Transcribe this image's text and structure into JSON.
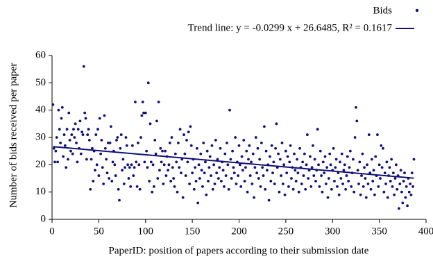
{
  "chart_data": {
    "type": "scatter",
    "x_label": "PaperID: position of papers according to their submission date",
    "y_label": "Number of bids received per paper",
    "xlim": [
      0,
      400
    ],
    "xticks": [
      0,
      50,
      100,
      150,
      200,
      250,
      300,
      350,
      400
    ],
    "ylim": [
      0,
      60
    ],
    "yticks": [
      0,
      10,
      20,
      30,
      40,
      50,
      60
    ],
    "grid": false,
    "legend": "top-right",
    "series": [
      {
        "name": "Bids",
        "type": "scatter",
        "color": "#10107a",
        "x": [
          1,
          2,
          3,
          4,
          5,
          6,
          7,
          8,
          9,
          10,
          11,
          12,
          13,
          14,
          15,
          16,
          17,
          18,
          19,
          20,
          21,
          22,
          23,
          24,
          25,
          26,
          27,
          28,
          29,
          30,
          31,
          32,
          33,
          34,
          35,
          36,
          37,
          38,
          39,
          40,
          41,
          42,
          43,
          44,
          45,
          46,
          47,
          48,
          49,
          50,
          51,
          52,
          53,
          54,
          55,
          56,
          57,
          58,
          59,
          60,
          61,
          62,
          63,
          64,
          65,
          66,
          67,
          68,
          69,
          70,
          71,
          72,
          73,
          74,
          75,
          76,
          77,
          78,
          79,
          80,
          81,
          82,
          83,
          84,
          85,
          86,
          87,
          88,
          89,
          90,
          91,
          92,
          93,
          94,
          95,
          96,
          97,
          98,
          99,
          100,
          101,
          102,
          103,
          104,
          105,
          106,
          107,
          108,
          109,
          110,
          111,
          112,
          113,
          114,
          115,
          116,
          117,
          118,
          119,
          120,
          121,
          122,
          123,
          124,
          125,
          126,
          127,
          128,
          129,
          130,
          131,
          132,
          133,
          134,
          135,
          136,
          137,
          138,
          139,
          140,
          141,
          142,
          143,
          144,
          145,
          146,
          147,
          148,
          149,
          150,
          151,
          152,
          153,
          154,
          155,
          156,
          157,
          158,
          159,
          160,
          161,
          162,
          163,
          164,
          165,
          166,
          167,
          168,
          169,
          170,
          171,
          172,
          173,
          174,
          175,
          176,
          177,
          178,
          179,
          180,
          181,
          182,
          183,
          184,
          185,
          186,
          187,
          188,
          189,
          190,
          191,
          192,
          193,
          194,
          195,
          196,
          197,
          198,
          199,
          200,
          201,
          202,
          203,
          204,
          205,
          206,
          207,
          208,
          209,
          210,
          211,
          212,
          213,
          214,
          215,
          216,
          217,
          218,
          219,
          220,
          221,
          222,
          223,
          224,
          225,
          226,
          227,
          228,
          229,
          230,
          231,
          232,
          233,
          234,
          235,
          236,
          237,
          238,
          239,
          240,
          241,
          242,
          243,
          244,
          245,
          246,
          247,
          248,
          249,
          250,
          251,
          252,
          253,
          254,
          255,
          256,
          257,
          258,
          259,
          260,
          261,
          262,
          263,
          264,
          265,
          266,
          267,
          268,
          269,
          270,
          271,
          272,
          273,
          274,
          275,
          276,
          277,
          278,
          279,
          280,
          281,
          282,
          283,
          284,
          285,
          286,
          287,
          288,
          289,
          290,
          291,
          292,
          293,
          294,
          295,
          296,
          297,
          298,
          299,
          300,
          301,
          302,
          303,
          304,
          305,
          306,
          307,
          308,
          309,
          310,
          311,
          312,
          313,
          314,
          315,
          316,
          317,
          318,
          319,
          320,
          321,
          322,
          323,
          324,
          325,
          326,
          327,
          328,
          329,
          330,
          331,
          332,
          333,
          334,
          335,
          336,
          337,
          338,
          339,
          340,
          341,
          342,
          343,
          344,
          345,
          346,
          347,
          348,
          349,
          350,
          351,
          352,
          353,
          354,
          355,
          356,
          357,
          358,
          359,
          360,
          361,
          362,
          363,
          364,
          365,
          366,
          367,
          368,
          369,
          370,
          371,
          372,
          373,
          374,
          375,
          376,
          377,
          378,
          379,
          380,
          381,
          382,
          383,
          384,
          385,
          386,
          387
        ],
        "values": [
          42,
          26,
          21,
          25,
          30,
          21,
          40,
          33,
          28,
          37,
          41,
          23,
          31,
          27,
          19,
          33,
          22,
          39,
          29,
          25,
          31,
          24,
          33,
          30,
          35,
          28,
          21,
          33,
          26,
          36,
          24,
          32,
          31,
          56,
          39,
          37,
          22,
          31,
          33,
          29,
          11,
          22,
          26,
          14,
          25,
          18,
          31,
          20,
          33,
          16,
          37,
          24,
          29,
          19,
          13,
          38,
          26,
          22,
          17,
          28,
          15,
          28,
          34,
          14,
          21,
          25,
          20,
          16,
          29,
          30,
          11,
          7,
          26,
          31,
          18,
          22,
          13,
          19,
          30,
          27,
          20,
          15,
          19,
          12,
          20,
          27,
          16,
          19,
          43,
          21,
          12,
          28,
          20,
          11,
          30,
          38,
          43,
          39,
          21,
          39,
          25,
          19,
          50,
          14,
          35,
          21,
          10,
          20,
          12,
          29,
          24,
          36,
          15,
          43,
          18,
          26,
          21,
          25,
          13,
          20,
          25,
          16,
          23,
          18,
          20,
          28,
          14,
          30,
          19,
          15,
          12,
          24,
          21,
          10,
          28,
          19,
          33,
          17,
          22,
          8,
          31,
          24,
          16,
          29,
          21,
          32,
          13,
          34,
          27,
          17,
          22,
          11,
          19,
          14,
          26,
          6,
          20,
          15,
          24,
          18,
          12,
          28,
          17,
          21,
          9,
          25,
          14,
          19,
          23,
          16,
          27,
          11,
          20,
          13,
          29,
          17,
          22,
          15,
          19,
          26,
          14,
          21,
          18,
          12,
          24,
          16,
          28,
          20,
          11,
          40,
          22,
          15,
          25,
          19,
          17,
          30,
          13,
          21,
          16,
          27,
          20,
          12,
          23,
          18,
          29,
          14,
          19,
          25,
          10,
          22,
          27,
          16,
          21,
          13,
          24,
          8,
          19,
          30,
          17,
          26,
          15,
          22,
          12,
          28,
          19,
          16,
          34,
          11,
          25,
          18,
          20,
          7,
          23,
          14,
          27,
          17,
          21,
          13,
          26,
          35,
          19,
          24,
          10,
          22,
          16,
          28,
          13,
          20,
          9,
          25,
          17,
          23,
          12,
          21,
          27,
          15,
          19,
          11,
          24,
          18,
          14,
          22,
          17,
          10,
          26,
          19,
          13,
          21,
          16,
          24,
          11,
          20,
          31,
          15,
          18,
          23,
          12,
          19,
          27,
          16,
          22,
          14,
          18,
          33,
          20,
          12,
          25,
          16,
          10,
          21,
          17,
          23,
          13,
          19,
          8,
          15,
          24,
          20,
          11,
          18,
          26,
          14,
          19,
          22,
          12,
          17,
          9,
          21,
          15,
          24,
          13,
          18,
          20,
          11,
          16,
          23,
          14,
          19,
          25,
          12,
          17,
          22,
          10,
          30,
          41,
          36,
          18,
          13,
          21,
          9,
          16,
          24,
          12,
          19,
          15,
          8,
          20,
          13,
          31,
          17,
          11,
          22,
          14,
          18,
          9,
          23,
          16,
          31,
          12,
          20,
          15,
          27,
          19,
          26,
          10,
          17,
          13,
          21,
          8,
          16,
          19,
          14,
          22,
          12,
          17,
          9,
          15,
          20,
          11,
          16,
          4,
          13,
          18,
          10,
          6,
          14,
          17,
          8,
          12,
          5,
          15,
          10,
          13,
          9,
          17,
          12,
          22
        ]
      },
      {
        "name": "Trend line: y = -0.0299 x + 26.6485, R² = 0.1617",
        "type": "line",
        "color": "#10107a",
        "x": [
          1,
          387
        ],
        "values": [
          26.62,
          15.08
        ]
      }
    ]
  }
}
